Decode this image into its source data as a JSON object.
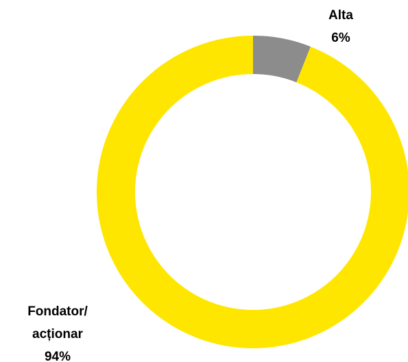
{
  "chart_data": {
    "type": "donut",
    "categories": [
      "Alta",
      "Fondator/ acționar"
    ],
    "values": [
      6,
      94
    ],
    "value_labels": [
      "6%",
      "94%"
    ],
    "colors": [
      "#8c8c8c",
      "#ffe600"
    ]
  }
}
